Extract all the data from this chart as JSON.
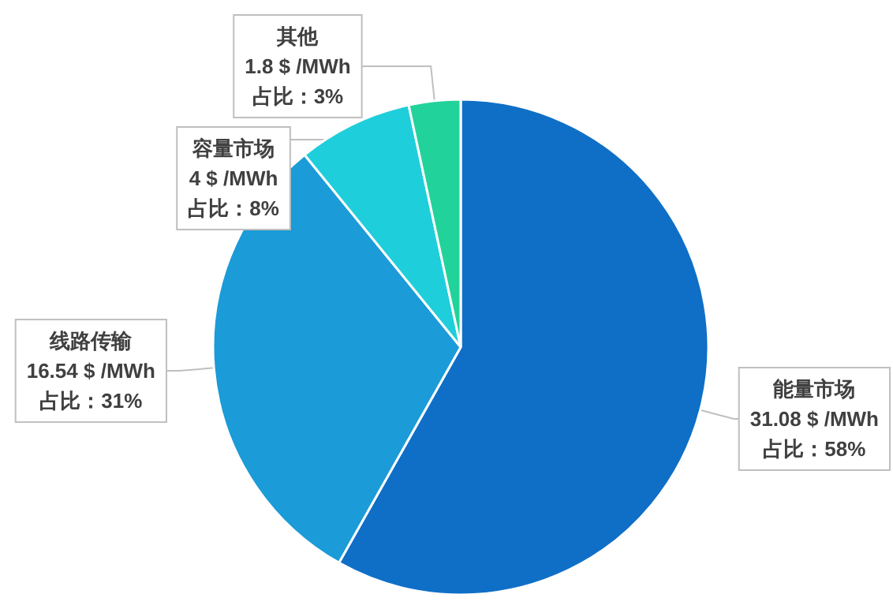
{
  "chart_data": {
    "type": "pie",
    "categories": [
      "能量市场",
      "线路传输",
      "容量市场",
      "其他"
    ],
    "values": [
      31.08,
      16.54,
      4,
      1.8
    ],
    "value_labels": [
      "31.08 $ /MWh\n占比：58%",
      "16.54 $ /MWh\n占比：31%",
      "4 $ /MWh\n占比：8%",
      "1.8 $ /MWh\n占比：3%"
    ],
    "colors": [
      "#0f6fc6",
      "#1b9bd7",
      "#1fcedb",
      "#21d39a"
    ]
  }
}
